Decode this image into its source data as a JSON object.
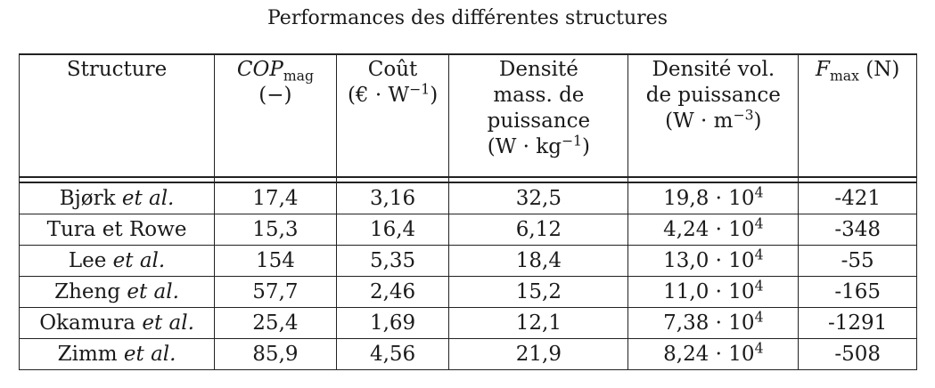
{
  "caption": "Performances des différentes structures",
  "header": {
    "structure": "Structure",
    "cop_main": "COP",
    "cop_sub": "mag",
    "cop_unit": "(−)",
    "cout_line1": "Coût",
    "cout_unit_base": "(€ · W",
    "cout_unit_exp": "−1",
    "cout_unit_close": ")",
    "dm_line1": "Densité",
    "dm_line2": "mass. de",
    "dm_line3": "puissance",
    "dm_unit_base": "(W · kg",
    "dm_unit_exp": "−1",
    "dm_unit_close": ")",
    "dv_line1": "Densité vol.",
    "dv_line2": "de puissance",
    "dv_unit_base": "(W · m",
    "dv_unit_exp": "−3",
    "dv_unit_close": ")",
    "f_main": "F",
    "f_sub": "max",
    "f_unit": " (N)"
  },
  "rows": [
    {
      "name": "Bjørk",
      "etal": " et al.",
      "cop": "17,4",
      "cout": "3,16",
      "dm": "32,5",
      "dv_mant": "19,8 · 10",
      "dv_exp": "4",
      "f": "-421"
    },
    {
      "name": "Tura et Rowe",
      "etal": "",
      "cop": "15,3",
      "cout": "16,4",
      "dm": "6,12",
      "dv_mant": "4,24 · 10",
      "dv_exp": "4",
      "f": "-348"
    },
    {
      "name": "Lee",
      "etal": " et al.",
      "cop": "154",
      "cout": "5,35",
      "dm": "18,4",
      "dv_mant": "13,0 · 10",
      "dv_exp": "4",
      "f": "-55"
    },
    {
      "name": "Zheng",
      "etal": " et al.",
      "cop": "57,7",
      "cout": "2,46",
      "dm": "15,2",
      "dv_mant": "11,0 · 10",
      "dv_exp": "4",
      "f": "-165"
    },
    {
      "name": "Okamura",
      "etal": " et al.",
      "cop": "25,4",
      "cout": "1,69",
      "dm": "12,1",
      "dv_mant": "7,38 · 10",
      "dv_exp": "4",
      "f": "-1291"
    },
    {
      "name": "Zimm",
      "etal": " et al.",
      "cop": "85,9",
      "cout": "4,56",
      "dm": "21,9",
      "dv_mant": "8,24 · 10",
      "dv_exp": "4",
      "f": "-508"
    }
  ]
}
